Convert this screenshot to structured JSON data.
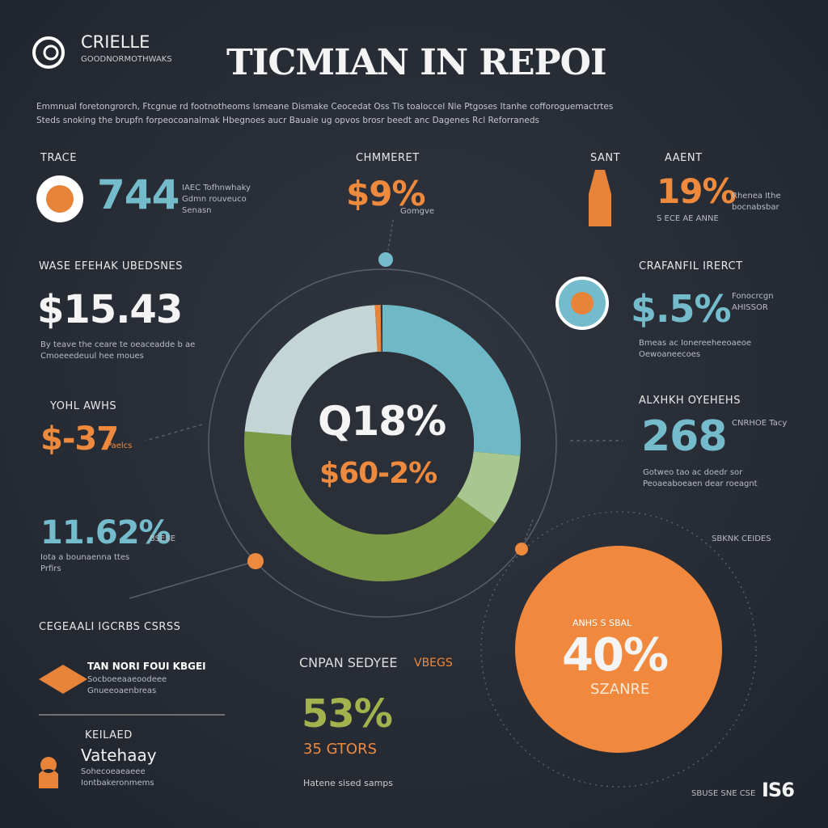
{
  "header": {
    "logo": "CRIELLE",
    "tagline": "GOODNORMOTHWAKS",
    "title": "TICMIAN IN REPOI"
  },
  "intro": [
    "Emmnual foretongrorch, Ftcgnue rd footnotheoms Ismeane Dismake Ceocedat Oss Tls toaloccel Nle Ptgoses Itanhe cofforoguemactrtes",
    "Steds snoking the brupfn forpeocoanalmak Hbegnoes aucr Bauaie ug opvos brosr beedt anc Dagenes Rcl Reforraneds"
  ],
  "stats": [
    {
      "label": "TRACE",
      "value": "744",
      "note": "IAEC Tofhnwhaky Gdmn rouveuco Senasn"
    },
    {
      "label": "CHMMERET",
      "value": "$9%",
      "note": "Gomgve"
    },
    {
      "label": "SANT",
      "label2": "AAENT",
      "value": "19%",
      "note": "Rhenea Ithe bocnabsbar",
      "note2": "S ECE AE ANNE"
    },
    {
      "label": "WASE EFEHAK UBEDSNES",
      "value": "$15.43",
      "note": "By teave the ceare te oeaceadde b ae Cmoeeedeuul hee moues"
    },
    {
      "label": "CRAFANFIL IRERCT",
      "value": "$.5%",
      "note": "Fonocrcgn AHISSOR",
      "note2": "Bmeas ac Ionereeheeoaeoe Oewoaneecoes"
    },
    {
      "label": "YOHL AWHS",
      "value": "$-37",
      "note": "Paelcs"
    },
    {
      "label": "ALXHKH OYEHEHS",
      "value": "268",
      "note": "CNRHOE Tacy",
      "note2": "Gotweo tao ac doedr sor Peoaeaboeaen dear roeagnt"
    },
    {
      "label": "",
      "value": "11.62%",
      "note": "Iota a bounaenna ttes Prfirs",
      "note2": "BSESE"
    },
    {
      "label": "CEGEAALI IGCRBS CSRSS",
      "value": "TAN NORI FOUI KBGEI",
      "note": "Socboeeaaeoodeee Gnueeoaenbreas"
    },
    {
      "label": "KEILAED",
      "value": "Vatehaay",
      "note": "Sohecoeaeaeee Iontbakeronmems"
    }
  ],
  "center": {
    "value": "Q18%",
    "sub": "$60-2%"
  },
  "bottom": {
    "label": "CNPAN SEDYEE",
    "tag": "VBEGS",
    "value": "53%",
    "sub": "35 GTORS",
    "note": "Hatene sised samps"
  },
  "callout": {
    "label": "ANHS S SBAL",
    "value": "40%",
    "sub": "SZANRE"
  },
  "side": {
    "note": "SBKNK CEIDES",
    "footer": "SBUSE SNE CSE",
    "footer_value": "IS6"
  }
}
